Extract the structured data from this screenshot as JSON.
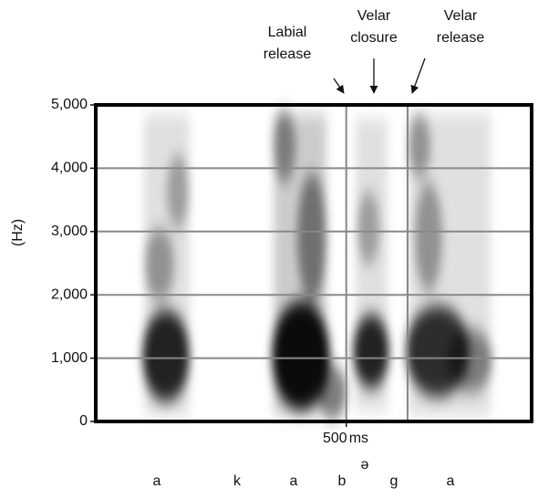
{
  "chart_data": {
    "type": "spectrogram",
    "y_label": "(Hz)",
    "ylim": [
      0,
      5000
    ],
    "yticks": [
      0,
      {
        "value": 1000,
        "label": "1,000"
      },
      {
        "value": 2000,
        "label": "2,000"
      },
      {
        "value": 3000,
        "label": "3,000"
      },
      {
        "value": 4000,
        "label": "4,000"
      },
      {
        "value": 5000,
        "label": "5,000"
      }
    ],
    "xlim": [
      0,
      870
    ],
    "xticks": [
      500
    ],
    "x_unit": "ms",
    "grid": true,
    "annotations": [
      {
        "lines": [
          "Labial",
          "release"
        ]
      },
      {
        "lines": [
          "Velar",
          "closure"
        ]
      },
      {
        "lines": [
          "Velar",
          "release"
        ]
      }
    ],
    "segments": [
      "a",
      "k",
      "a",
      "b",
      "ə",
      "g",
      "a"
    ]
  }
}
